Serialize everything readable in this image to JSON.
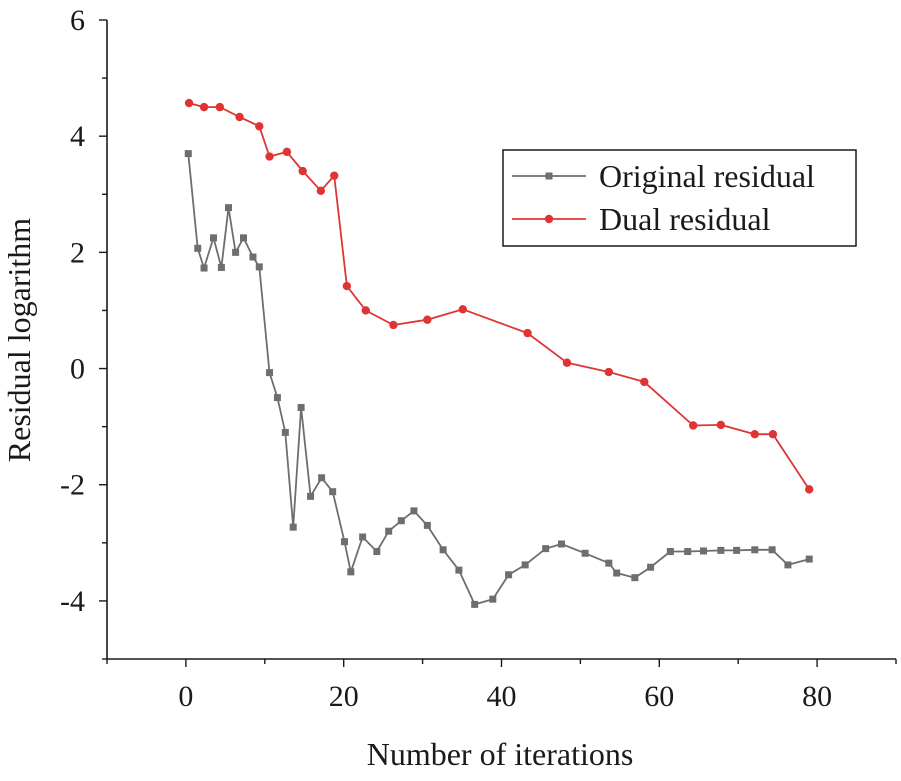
{
  "chart_data": {
    "type": "line",
    "xlabel": "Number of iterations",
    "ylabel": "Residual logarithm",
    "xlim": [
      -10,
      90
    ],
    "ylim": [
      -5,
      6
    ],
    "xticks": [
      0,
      20,
      40,
      60,
      80
    ],
    "yticks": [
      6,
      4,
      2,
      0,
      -2,
      -4
    ],
    "xtick_labels": [
      "0",
      "20",
      "40",
      "60",
      "80"
    ],
    "ytick_labels": [
      "6",
      "4",
      "2",
      "0",
      "-2",
      "-4"
    ],
    "grid": false,
    "legend_position": "upper-right",
    "series": [
      {
        "name": "Original residual",
        "color": "#6e6e6e",
        "marker": "square",
        "points": [
          [
            0.3,
            3.7
          ],
          [
            1.5,
            2.07
          ],
          [
            2.3,
            1.73
          ],
          [
            3.5,
            2.25
          ],
          [
            4.5,
            1.74
          ],
          [
            5.4,
            2.77
          ],
          [
            6.3,
            2.0
          ],
          [
            7.3,
            2.25
          ],
          [
            8.5,
            1.92
          ],
          [
            9.3,
            1.75
          ],
          [
            10.6,
            -0.07
          ],
          [
            11.6,
            -0.5
          ],
          [
            12.6,
            -1.1
          ],
          [
            13.6,
            -2.73
          ],
          [
            14.6,
            -0.67
          ],
          [
            15.8,
            -2.2
          ],
          [
            17.2,
            -1.88
          ],
          [
            18.6,
            -2.12
          ],
          [
            20.1,
            -2.98
          ],
          [
            20.9,
            -3.5
          ],
          [
            22.4,
            -2.9
          ],
          [
            24.2,
            -3.15
          ],
          [
            25.7,
            -2.8
          ],
          [
            27.3,
            -2.62
          ],
          [
            28.9,
            -2.45
          ],
          [
            30.6,
            -2.7
          ],
          [
            32.6,
            -3.12
          ],
          [
            34.6,
            -3.47
          ],
          [
            36.6,
            -4.06
          ],
          [
            38.9,
            -3.97
          ],
          [
            40.9,
            -3.55
          ],
          [
            43.0,
            -3.38
          ],
          [
            45.6,
            -3.1
          ],
          [
            47.6,
            -3.02
          ],
          [
            50.6,
            -3.18
          ],
          [
            53.6,
            -3.35
          ],
          [
            54.6,
            -3.52
          ],
          [
            56.9,
            -3.6
          ],
          [
            58.9,
            -3.42
          ],
          [
            61.4,
            -3.15
          ],
          [
            63.6,
            -3.15
          ],
          [
            65.6,
            -3.14
          ],
          [
            67.8,
            -3.13
          ],
          [
            69.8,
            -3.13
          ],
          [
            72.1,
            -3.12
          ],
          [
            74.3,
            -3.12
          ],
          [
            76.3,
            -3.38
          ],
          [
            79.0,
            -3.28
          ]
        ]
      },
      {
        "name": "Dual residual",
        "color": "#e03434",
        "marker": "circle",
        "points": [
          [
            0.4,
            4.57
          ],
          [
            2.3,
            4.5
          ],
          [
            4.3,
            4.5
          ],
          [
            6.8,
            4.33
          ],
          [
            9.3,
            4.17
          ],
          [
            10.6,
            3.65
          ],
          [
            12.8,
            3.73
          ],
          [
            14.8,
            3.4
          ],
          [
            17.1,
            3.06
          ],
          [
            18.8,
            3.32
          ],
          [
            20.4,
            1.42
          ],
          [
            22.8,
            1.0
          ],
          [
            26.3,
            0.75
          ],
          [
            30.6,
            0.84
          ],
          [
            35.1,
            1.02
          ],
          [
            43.3,
            0.61
          ],
          [
            48.3,
            0.1
          ],
          [
            53.6,
            -0.06
          ],
          [
            58.1,
            -0.23
          ],
          [
            64.3,
            -0.98
          ],
          [
            67.8,
            -0.97
          ],
          [
            72.1,
            -1.13
          ],
          [
            74.4,
            -1.13
          ],
          [
            79.0,
            -2.08
          ]
        ]
      }
    ]
  }
}
